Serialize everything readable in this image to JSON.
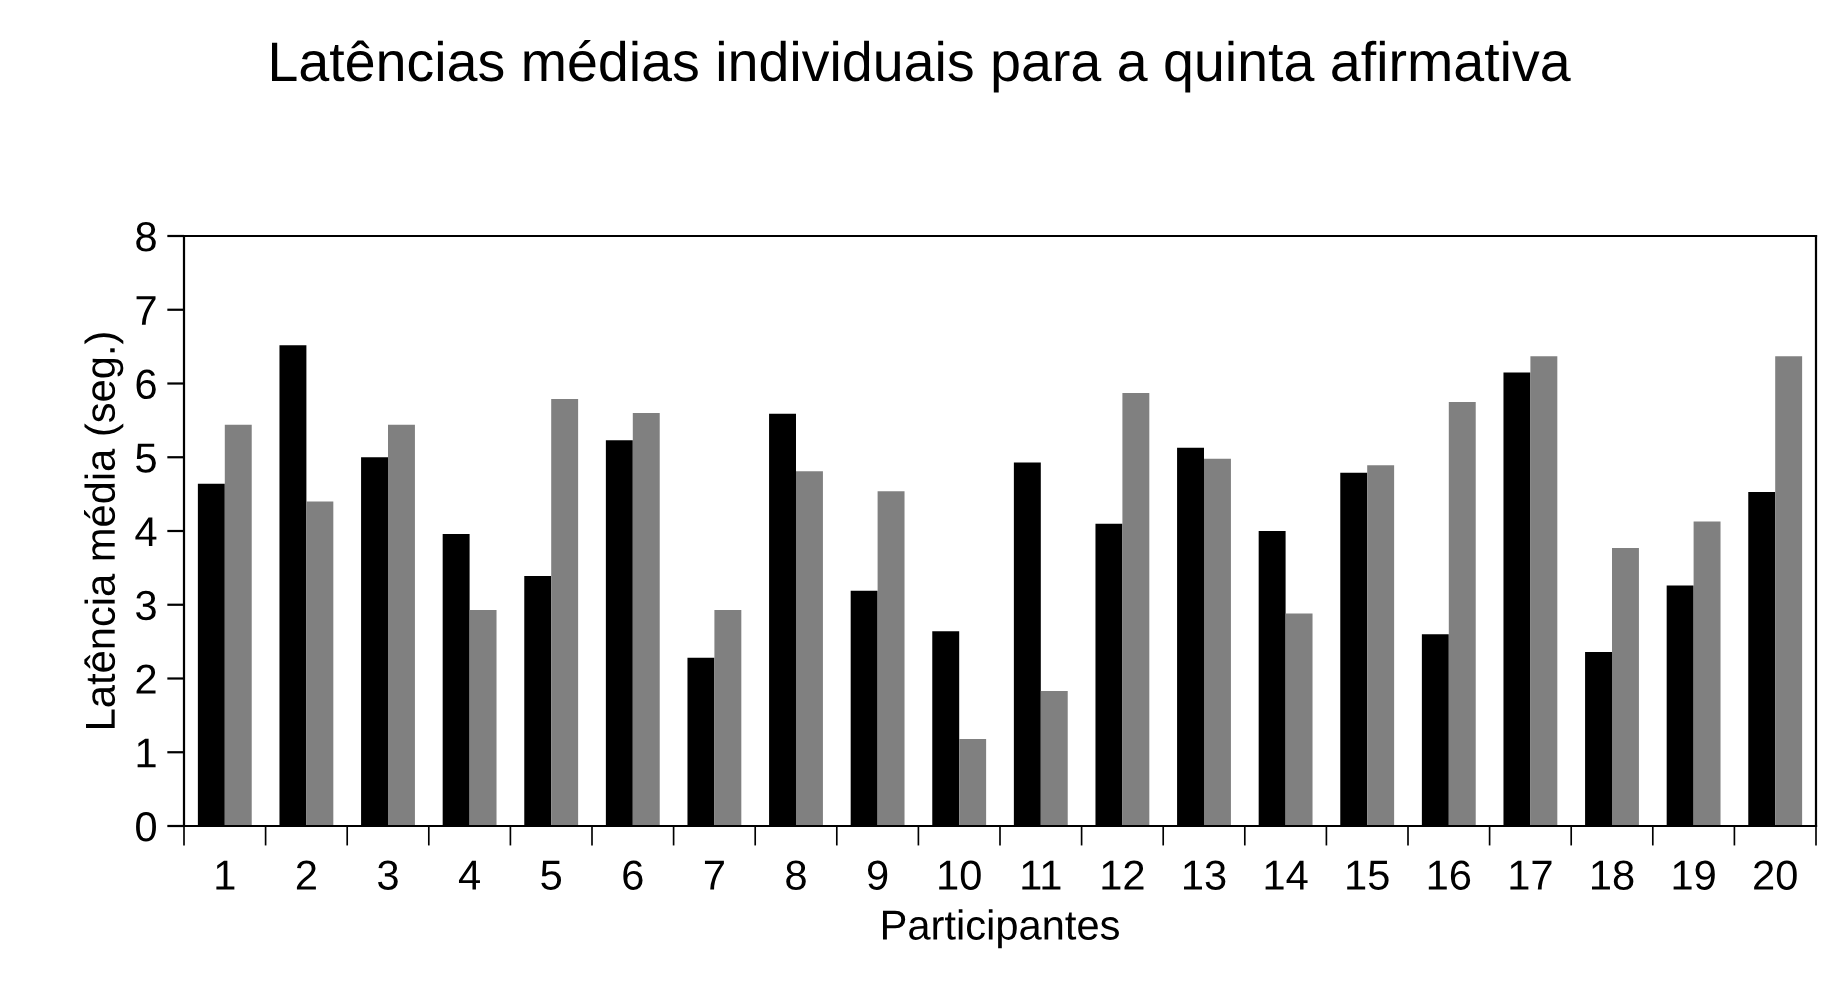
{
  "chart_data": {
    "type": "bar",
    "title": "Latências médias individuais para a quinta afirmativa",
    "xlabel": "Participantes",
    "ylabel": "Latência média (seg.)",
    "categories": [
      "1",
      "2",
      "3",
      "4",
      "5",
      "6",
      "7",
      "8",
      "9",
      "10",
      "11",
      "12",
      "13",
      "14",
      "15",
      "16",
      "17",
      "18",
      "19",
      "20"
    ],
    "series": [
      {
        "color": "#000000",
        "values": [
          4.64,
          6.52,
          5.0,
          3.96,
          3.39,
          5.23,
          2.28,
          5.59,
          3.19,
          2.64,
          4.93,
          4.1,
          5.13,
          4.0,
          4.79,
          2.6,
          6.15,
          2.36,
          3.26,
          4.53
        ]
      },
      {
        "color": "#808080",
        "values": [
          5.44,
          4.4,
          5.44,
          2.93,
          5.79,
          5.6,
          2.93,
          4.81,
          4.54,
          1.18,
          1.83,
          5.87,
          4.98,
          2.88,
          4.89,
          5.75,
          6.37,
          3.77,
          4.13,
          6.37
        ]
      }
    ],
    "ylim": [
      0,
      8
    ],
    "yticks": [
      0,
      1,
      2,
      3,
      4,
      5,
      6,
      7,
      8
    ],
    "grid": false,
    "legend": false
  }
}
